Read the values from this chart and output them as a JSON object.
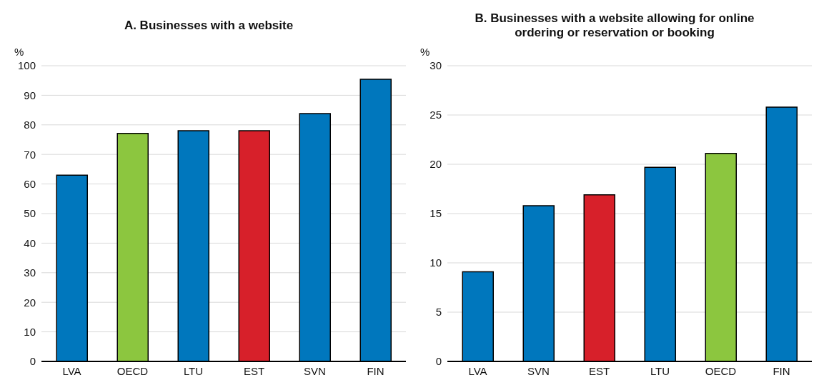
{
  "chart_data": [
    {
      "type": "bar",
      "title": "A. Businesses with a website",
      "ylabel": "%",
      "categories": [
        "LVA",
        "OECD",
        "LTU",
        "EST",
        "SVN",
        "FIN"
      ],
      "values": [
        63,
        77.1,
        78,
        78,
        83.8,
        95.4
      ],
      "colors": [
        "#0077bd",
        "#8cc63f",
        "#0077bd",
        "#d7202a",
        "#0077bd",
        "#0077bd"
      ],
      "ylim": [
        0,
        100
      ],
      "yticks": [
        0,
        10,
        20,
        30,
        40,
        50,
        60,
        70,
        80,
        90,
        100
      ],
      "grid": "y"
    },
    {
      "type": "bar",
      "title": "B. Businesses with a website allowing for online ordering or reservation or booking",
      "ylabel": "%",
      "categories": [
        "LVA",
        "SVN",
        "EST",
        "LTU",
        "OECD",
        "FIN"
      ],
      "values": [
        9.1,
        15.8,
        16.9,
        19.7,
        21.1,
        25.8
      ],
      "colors": [
        "#0077bd",
        "#0077bd",
        "#d7202a",
        "#0077bd",
        "#8cc63f",
        "#0077bd"
      ],
      "ylim": [
        0,
        30
      ],
      "yticks": [
        0,
        5,
        10,
        15,
        20,
        25,
        30
      ],
      "grid": "y"
    }
  ]
}
